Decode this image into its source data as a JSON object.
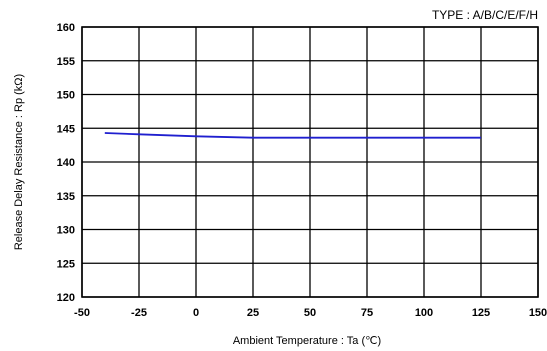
{
  "chart_data": {
    "type": "line",
    "annotation": "TYPE : A/B/C/E/F/H",
    "xlabel": "Ambient Temperature : Ta (℃)",
    "ylabel": "Release Delay Resistance : Rp (kΩ)",
    "xlim": [
      -50,
      150
    ],
    "ylim": [
      120,
      160
    ],
    "xticks": [
      -50,
      -25,
      0,
      25,
      50,
      75,
      100,
      125,
      150
    ],
    "yticks": [
      120,
      125,
      130,
      135,
      140,
      145,
      150,
      155,
      160
    ],
    "grid": true,
    "series": [
      {
        "color": "#1f1fcf",
        "x": [
          -40,
          -25,
          0,
          25,
          50,
          75,
          100,
          125
        ],
        "y": [
          144.3,
          144.1,
          143.8,
          143.6,
          143.6,
          143.6,
          143.6,
          143.6
        ]
      }
    ]
  }
}
